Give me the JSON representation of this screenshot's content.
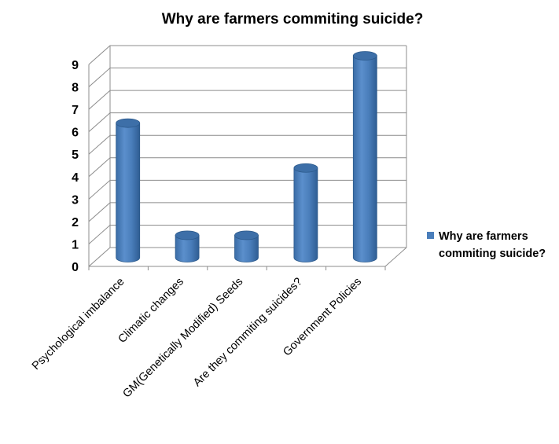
{
  "chart_data": {
    "type": "bar",
    "title": "Why are farmers commiting suicide?",
    "categories": [
      "Psychological imbalance",
      "Climatic changes",
      "GM(Genetically Modified) Seeds",
      "Are they commiting suicides?",
      "Government Policies"
    ],
    "series": [
      {
        "name": "Why are farmers commiting suicide?",
        "values": [
          6,
          1,
          1,
          4,
          9
        ]
      }
    ],
    "y_ticks": [
      "0",
      "1",
      "2",
      "3",
      "4",
      "5",
      "6",
      "7",
      "8",
      "9"
    ],
    "ylim": [
      0,
      9
    ],
    "grid": true,
    "legend_position": "right",
    "style_3d": "cylinder",
    "bar_color": "#4a7ebb",
    "bar_edge_color": "#2c5a8c",
    "bar_top_color": "#3d6fa8"
  }
}
